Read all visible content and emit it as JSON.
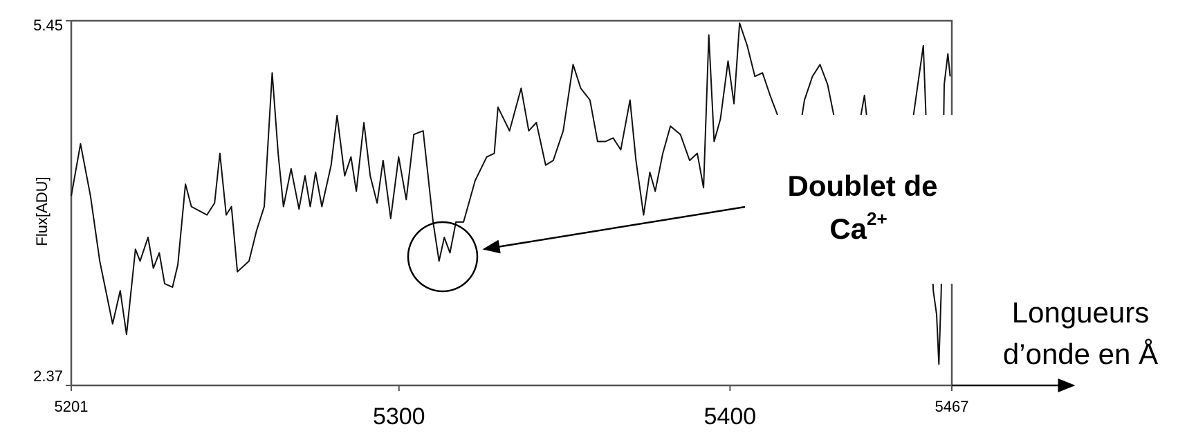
{
  "chart_data": {
    "type": "line",
    "y_label": "Flux[ADU]",
    "x_label_lines": [
      "Longueurs",
      "d’onde en Å"
    ],
    "annotation": {
      "lines": [
        "Doublet de",
        "Ca"
      ],
      "superscript": "2+"
    },
    "color": "#111111",
    "xlim": [
      5201,
      5467
    ],
    "xticks": [
      5201,
      5300,
      5400,
      5467
    ],
    "ylim": [
      2.37,
      5.45
    ],
    "yticks": [
      2.37,
      5.45
    ],
    "x": [
      5201.0,
      5203.8,
      5206.8,
      5209.6,
      5213.5,
      5215.8,
      5217.7,
      5220.4,
      5221.8,
      5224.2,
      5225.8,
      5227.6,
      5229.2,
      5231.6,
      5233.2,
      5235.5,
      5237.3,
      5242.0,
      5244.3,
      5245.9,
      5247.8,
      5249.4,
      5251.2,
      5254.7,
      5257.0,
      5259.3,
      5261.7,
      5263.5,
      5265.1,
      5267.4,
      5269.8,
      5271.6,
      5273.2,
      5274.8,
      5276.7,
      5279.5,
      5281.3,
      5283.6,
      5285.5,
      5287.1,
      5289.4,
      5291.3,
      5293.4,
      5295.2,
      5297.5,
      5299.9,
      5302.2,
      5304.5,
      5307.3,
      5310.3,
      5312.1,
      5313.7,
      5315.4,
      5317.2,
      5319.5,
      5323.0,
      5326.5,
      5328.8,
      5329.9,
      5333.4,
      5336.9,
      5339.2,
      5341.5,
      5344.3,
      5346.6,
      5349.6,
      5352.6,
      5354.9,
      5357.7,
      5360.0,
      5362.4,
      5364.7,
      5367.0,
      5369.8,
      5371.6,
      5373.9,
      5375.8,
      5377.4,
      5379.7,
      5382.0,
      5385.0,
      5387.8,
      5390.1,
      5392.0,
      5393.6,
      5395.2,
      5397.1,
      5399.4,
      5401.2,
      5402.9,
      5405.2,
      5407.5,
      5409.8,
      5412.1,
      5414.4,
      5417.9,
      5421.4,
      5422.5,
      5424.9,
      5427.2,
      5429.5,
      5431.8,
      5435.3,
      5438.7,
      5440.6,
      5442.2,
      5448.0,
      5453.8,
      5458.4,
      5459.6,
      5461.4,
      5462.4,
      5463.1,
      5463.8,
      5464.7,
      5465.8,
      5466.5
    ],
    "values": [
      3.97,
      4.41,
      3.97,
      3.42,
      2.89,
      3.17,
      2.8,
      3.52,
      3.42,
      3.62,
      3.36,
      3.49,
      3.23,
      3.2,
      3.39,
      4.07,
      3.88,
      3.81,
      3.91,
      4.33,
      3.81,
      3.88,
      3.33,
      3.42,
      3.68,
      3.88,
      5.01,
      4.33,
      3.88,
      4.2,
      3.86,
      4.14,
      3.88,
      4.17,
      3.88,
      4.23,
      4.65,
      4.14,
      4.3,
      4.01,
      4.59,
      4.14,
      3.91,
      4.27,
      3.78,
      4.3,
      3.94,
      4.49,
      4.52,
      3.75,
      3.42,
      3.62,
      3.49,
      3.75,
      3.75,
      4.1,
      4.3,
      4.33,
      4.72,
      4.52,
      4.88,
      4.52,
      4.59,
      4.23,
      4.27,
      4.52,
      5.08,
      4.88,
      4.78,
      4.43,
      4.43,
      4.46,
      4.36,
      4.78,
      4.27,
      3.81,
      4.17,
      4.01,
      4.33,
      4.56,
      4.49,
      4.27,
      4.33,
      4.04,
      5.33,
      4.43,
      4.62,
      5.11,
      4.75,
      5.43,
      5.24,
      4.98,
      5.01,
      4.82,
      4.65,
      4.33,
      4.59,
      4.78,
      4.98,
      5.08,
      4.91,
      4.59,
      4.33,
      4.52,
      4.82,
      4.4,
      4.2,
      4.33,
      5.24,
      4.33,
      3.17,
      2.97,
      2.55,
      3.17,
      4.91,
      5.17,
      4.98
    ]
  }
}
